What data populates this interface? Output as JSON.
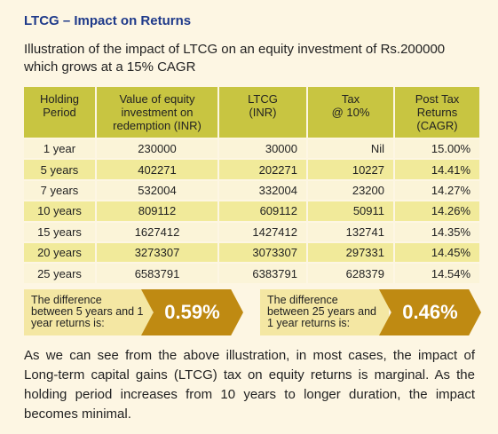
{
  "title": "LTCG – Impact on Returns",
  "intro": "Illustration of the impact of LTCG on an equity investment of Rs.200000 which grows at a 15% CAGR",
  "table": {
    "headers": [
      "Holding\nPeriod",
      "Value of equity\ninvestment on\nredemption (INR)",
      "LTCG\n(INR)",
      "Tax\n@ 10%",
      "Post Tax\nReturns\n(CAGR)"
    ],
    "rows": [
      [
        "1 year",
        "230000",
        "30000",
        "Nil",
        "15.00%"
      ],
      [
        "5 years",
        "402271",
        "202271",
        "10227",
        "14.41%"
      ],
      [
        "7 years",
        "532004",
        "332004",
        "23200",
        "14.27%"
      ],
      [
        "10 years",
        "809112",
        "609112",
        "50911",
        "14.26%"
      ],
      [
        "15 years",
        "1627412",
        "1427412",
        "132741",
        "14.35%"
      ],
      [
        "20 years",
        "3273307",
        "3073307",
        "297331",
        "14.45%"
      ],
      [
        "25 years",
        "6583791",
        "6383791",
        "628379",
        "14.54%"
      ]
    ]
  },
  "callouts": [
    {
      "label": "The difference between 5 years and 1 year returns is:",
      "value": "0.59%"
    },
    {
      "label": "The difference between 25 years and 1 year returns is:",
      "value": "0.46%"
    }
  ],
  "conclusion": "As we can see from the above illustration, in most cases, the impact of Long-term capital gains (LTCG) tax on equity returns is marginal. As the holding period increases from 10 years to longer duration, the impact becomes minimal.",
  "colors": {
    "title": "#1f3a8a",
    "header_bg": "#c8c541",
    "row_light": "#fbf4d8",
    "row_dark": "#f1ea9a",
    "callout_label_bg": "#f4e7a3",
    "callout_value_bg": "#bf8a12"
  }
}
